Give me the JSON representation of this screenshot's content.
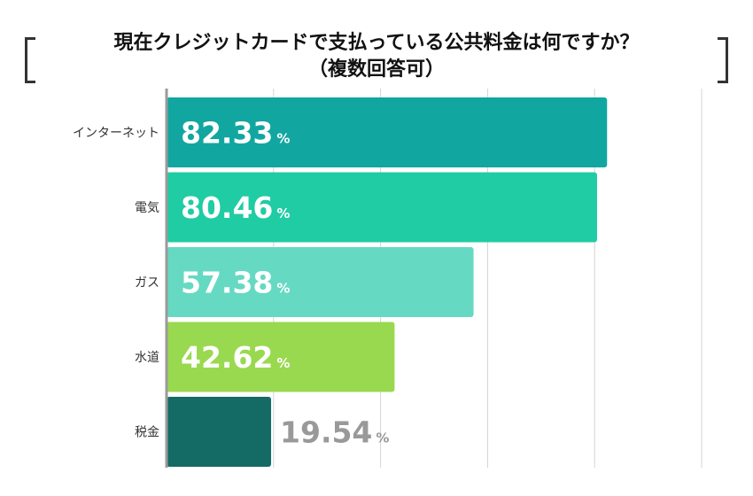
{
  "title": {
    "line1": "現在クレジットカードで支払っている公共料金は何ですか？",
    "line2": "（複数回答可）"
  },
  "chart_data": {
    "type": "bar",
    "orientation": "horizontal",
    "title": "現在クレジットカードで支払っている公共料金は何ですか？（複数回答可）",
    "categories": [
      "インターネット",
      "電気",
      "ガス",
      "水道",
      "税金"
    ],
    "values": [
      82.33,
      80.46,
      57.38,
      42.62,
      19.54
    ],
    "value_unit": "%",
    "xlim": [
      0,
      100
    ],
    "grid": true,
    "colors": [
      "#12a6a1",
      "#20cca4",
      "#66d9c2",
      "#99d94f",
      "#146b66"
    ],
    "label_colors": [
      "#ffffff",
      "#ffffff",
      "#ffffff",
      "#ffffff",
      "#999999"
    ]
  }
}
